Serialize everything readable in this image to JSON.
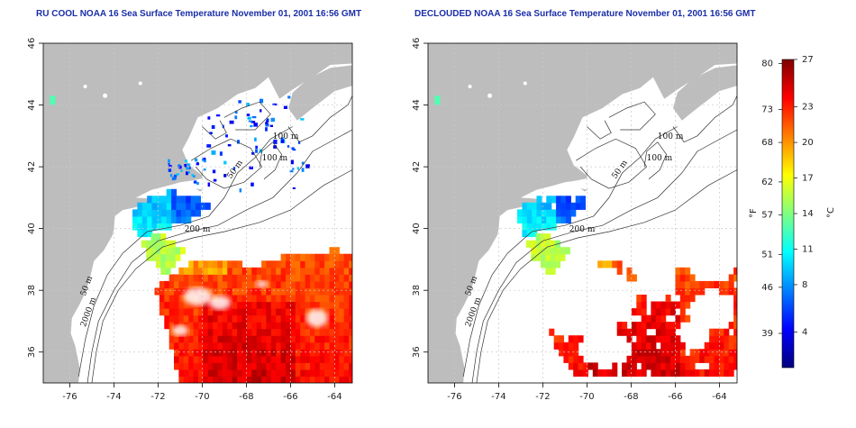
{
  "panels": [
    {
      "title": "RU COOL NOAA 16 Sea Surface Temperature November 01, 2001 16:56 GMT",
      "kind": "raw"
    },
    {
      "title": "DECLOUDED NOAA 16 Sea Surface Temperature November 01, 2001 16:56 GMT",
      "kind": "declouded"
    }
  ],
  "axes": {
    "lon_ticks": [
      "-76",
      "-74",
      "-72",
      "-70",
      "-68",
      "-66",
      "-64"
    ],
    "lat_ticks": [
      "36",
      "38",
      "40",
      "42",
      "44",
      "46"
    ],
    "lon_range": [
      -77.2,
      -63.2
    ],
    "lat_range": [
      35.0,
      46.0
    ]
  },
  "contours": {
    "labels": [
      "100 m",
      "100 m",
      "50 m",
      "200 m",
      "50 m",
      "2000 m"
    ]
  },
  "colorbar": {
    "f_label": "°F",
    "c_label": "°C",
    "f_ticks": [
      "80",
      "73",
      "68",
      "62",
      "57",
      "51",
      "46",
      "39"
    ],
    "c_ticks": [
      "27",
      "23",
      "20",
      "17",
      "14",
      "11",
      "8",
      "4"
    ],
    "colors": [
      "#00007f",
      "#0000ff",
      "#0080ff",
      "#00ffff",
      "#80ff80",
      "#ffff00",
      "#ff8000",
      "#ff0000",
      "#7f0000"
    ]
  },
  "map_colors": {
    "land": "#bdbdbd",
    "ocean": "#ffffff",
    "grid": "#c9c9c9"
  }
}
